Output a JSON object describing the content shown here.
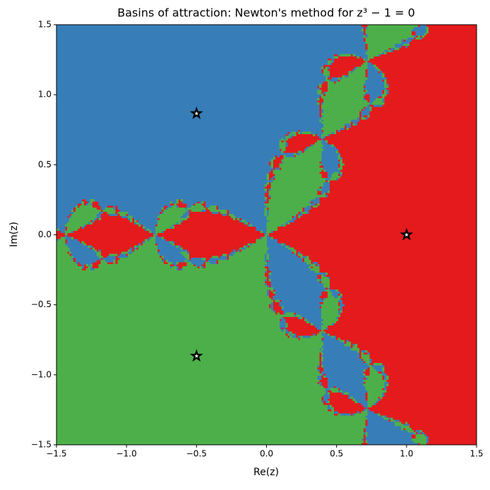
{
  "chart_data": {
    "type": "basin",
    "title": "Basins of attraction: Newton's method for z³ − 1 = 0",
    "x_label": "Re(z)",
    "y_label": "Im(z)",
    "xlim": [
      -1.5,
      1.5
    ],
    "ylim": [
      -1.5,
      1.5
    ],
    "xticks": [
      {
        "value": -1.5,
        "label": "−1.5"
      },
      {
        "value": -1.0,
        "label": "−1.0"
      },
      {
        "value": -0.5,
        "label": "−0.5"
      },
      {
        "value": 0,
        "label": "0.0"
      },
      0.5,
      {
        "value": 1.0,
        "label": "1.0"
      },
      1.5
    ],
    "yticks": [
      {
        "value": -1.5,
        "label": "−1.5"
      },
      {
        "value": -1.0,
        "label": "−1.0"
      },
      {
        "value": -0.5,
        "label": "−0.5"
      },
      {
        "value": 0,
        "label": "0.0"
      },
      0.5,
      {
        "value": 1.0,
        "label": "1.0"
      },
      1.5
    ],
    "roots": {
      "x": [
        1,
        -0.5,
        -0.5
      ],
      "y": [
        0,
        0.866,
        -0.866
      ],
      "colors": [
        "#e41a1c",
        "#377eb8",
        "#4daf4a"
      ]
    }
  }
}
